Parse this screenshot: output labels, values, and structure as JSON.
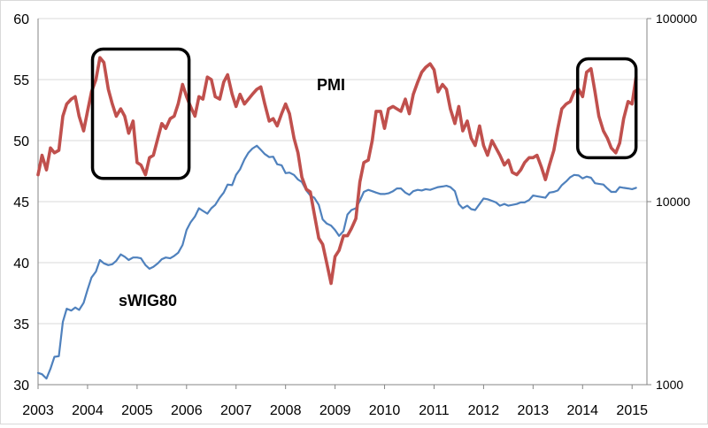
{
  "chart_data": {
    "type": "line",
    "title": "",
    "xlabel": "",
    "ylabel": "",
    "x_ticks": [
      "2003",
      "2004",
      "2005",
      "2006",
      "2007",
      "2008",
      "2009",
      "2010",
      "2011",
      "2012",
      "2013",
      "2014",
      "2015"
    ],
    "x_range": [
      2003,
      2015.3
    ],
    "y_left": {
      "range": [
        30,
        60
      ],
      "ticks": [
        "30",
        "35",
        "40",
        "45",
        "50",
        "55",
        "60"
      ]
    },
    "y_right": {
      "scale": "log",
      "range": [
        1000,
        100000
      ],
      "ticks": [
        "1000",
        "10000",
        "100000"
      ]
    },
    "grid": "horizontal",
    "legend": "none",
    "series": [
      {
        "name": "PMI",
        "axis": "left",
        "color": "#c0504d",
        "points": [
          [
            2003.0,
            47.2
          ],
          [
            2003.08,
            48.8
          ],
          [
            2003.17,
            47.6
          ],
          [
            2003.25,
            49.4
          ],
          [
            2003.33,
            49.0
          ],
          [
            2003.42,
            49.2
          ],
          [
            2003.5,
            52.0
          ],
          [
            2003.58,
            53.0
          ],
          [
            2003.67,
            53.4
          ],
          [
            2003.75,
            53.6
          ],
          [
            2003.83,
            52.0
          ],
          [
            2003.92,
            50.8
          ],
          [
            2004.0,
            52.4
          ],
          [
            2004.08,
            54.0
          ],
          [
            2004.17,
            55.0
          ],
          [
            2004.25,
            56.8
          ],
          [
            2004.33,
            56.4
          ],
          [
            2004.42,
            54.2
          ],
          [
            2004.5,
            53.0
          ],
          [
            2004.58,
            52.0
          ],
          [
            2004.67,
            52.6
          ],
          [
            2004.75,
            52.0
          ],
          [
            2004.83,
            50.6
          ],
          [
            2004.92,
            51.6
          ],
          [
            2005.0,
            48.2
          ],
          [
            2005.08,
            48.0
          ],
          [
            2005.17,
            47.2
          ],
          [
            2005.25,
            48.6
          ],
          [
            2005.33,
            48.8
          ],
          [
            2005.42,
            50.2
          ],
          [
            2005.5,
            51.4
          ],
          [
            2005.58,
            51.0
          ],
          [
            2005.67,
            51.8
          ],
          [
            2005.75,
            52.0
          ],
          [
            2005.83,
            53.0
          ],
          [
            2005.92,
            54.6
          ],
          [
            2006.0,
            53.6
          ],
          [
            2006.08,
            52.8
          ],
          [
            2006.17,
            52.0
          ],
          [
            2006.25,
            53.6
          ],
          [
            2006.33,
            53.4
          ],
          [
            2006.42,
            55.2
          ],
          [
            2006.5,
            55.0
          ],
          [
            2006.58,
            53.6
          ],
          [
            2006.67,
            53.4
          ],
          [
            2006.75,
            54.8
          ],
          [
            2006.83,
            55.4
          ],
          [
            2006.92,
            53.8
          ],
          [
            2007.0,
            52.8
          ],
          [
            2007.08,
            53.8
          ],
          [
            2007.17,
            53.0
          ],
          [
            2007.25,
            53.4
          ],
          [
            2007.33,
            53.8
          ],
          [
            2007.42,
            54.2
          ],
          [
            2007.5,
            54.4
          ],
          [
            2007.58,
            53.0
          ],
          [
            2007.67,
            51.6
          ],
          [
            2007.75,
            51.8
          ],
          [
            2007.83,
            51.2
          ],
          [
            2007.92,
            52.2
          ],
          [
            2008.0,
            53.0
          ],
          [
            2008.08,
            52.2
          ],
          [
            2008.17,
            50.2
          ],
          [
            2008.25,
            49.0
          ],
          [
            2008.33,
            47.0
          ],
          [
            2008.42,
            46.0
          ],
          [
            2008.5,
            45.8
          ],
          [
            2008.58,
            44.0
          ],
          [
            2008.67,
            42.0
          ],
          [
            2008.75,
            41.5
          ],
          [
            2008.83,
            40.0
          ],
          [
            2008.92,
            38.3
          ],
          [
            2009.0,
            40.5
          ],
          [
            2009.08,
            41.0
          ],
          [
            2009.17,
            42.2
          ],
          [
            2009.25,
            42.2
          ],
          [
            2009.33,
            42.8
          ],
          [
            2009.42,
            43.6
          ],
          [
            2009.5,
            46.6
          ],
          [
            2009.58,
            48.2
          ],
          [
            2009.67,
            48.4
          ],
          [
            2009.75,
            50.0
          ],
          [
            2009.83,
            52.4
          ],
          [
            2009.92,
            52.4
          ],
          [
            2010.0,
            51.0
          ],
          [
            2010.08,
            52.6
          ],
          [
            2010.17,
            52.8
          ],
          [
            2010.25,
            52.6
          ],
          [
            2010.33,
            52.4
          ],
          [
            2010.42,
            53.4
          ],
          [
            2010.5,
            52.2
          ],
          [
            2010.58,
            53.8
          ],
          [
            2010.67,
            54.8
          ],
          [
            2010.75,
            55.6
          ],
          [
            2010.83,
            56.0
          ],
          [
            2010.92,
            56.3
          ],
          [
            2011.0,
            55.8
          ],
          [
            2011.08,
            54.0
          ],
          [
            2011.17,
            54.6
          ],
          [
            2011.25,
            54.2
          ],
          [
            2011.33,
            52.6
          ],
          [
            2011.42,
            51.4
          ],
          [
            2011.5,
            52.8
          ],
          [
            2011.58,
            50.8
          ],
          [
            2011.67,
            51.6
          ],
          [
            2011.75,
            50.2
          ],
          [
            2011.83,
            49.6
          ],
          [
            2011.92,
            51.2
          ],
          [
            2012.0,
            49.6
          ],
          [
            2012.08,
            48.8
          ],
          [
            2012.17,
            50.0
          ],
          [
            2012.25,
            49.4
          ],
          [
            2012.33,
            48.8
          ],
          [
            2012.42,
            48.0
          ],
          [
            2012.5,
            48.4
          ],
          [
            2012.58,
            47.4
          ],
          [
            2012.67,
            47.2
          ],
          [
            2012.75,
            47.6
          ],
          [
            2012.83,
            48.2
          ],
          [
            2012.92,
            48.6
          ],
          [
            2013.0,
            48.6
          ],
          [
            2013.08,
            48.8
          ],
          [
            2013.17,
            47.8
          ],
          [
            2013.25,
            46.8
          ],
          [
            2013.33,
            48.0
          ],
          [
            2013.42,
            49.2
          ],
          [
            2013.5,
            51.0
          ],
          [
            2013.58,
            52.6
          ],
          [
            2013.67,
            53.0
          ],
          [
            2013.75,
            53.2
          ],
          [
            2013.83,
            54.0
          ],
          [
            2013.92,
            54.2
          ],
          [
            2014.0,
            53.6
          ],
          [
            2014.08,
            55.6
          ],
          [
            2014.17,
            55.9
          ],
          [
            2014.25,
            54.0
          ],
          [
            2014.33,
            52.0
          ],
          [
            2014.42,
            50.8
          ],
          [
            2014.5,
            50.2
          ],
          [
            2014.58,
            49.4
          ],
          [
            2014.67,
            49.0
          ],
          [
            2014.75,
            49.8
          ],
          [
            2014.83,
            51.8
          ],
          [
            2014.92,
            53.2
          ],
          [
            2015.0,
            53.0
          ],
          [
            2015.08,
            55.2
          ]
        ]
      },
      {
        "name": "sWIG80",
        "axis": "right",
        "color": "#4f81bd",
        "points": [
          [
            2003.0,
            1160
          ],
          [
            2003.08,
            1140
          ],
          [
            2003.17,
            1080
          ],
          [
            2003.25,
            1220
          ],
          [
            2003.33,
            1420
          ],
          [
            2003.42,
            1430
          ],
          [
            2003.5,
            2200
          ],
          [
            2003.58,
            2600
          ],
          [
            2003.67,
            2540
          ],
          [
            2003.75,
            2640
          ],
          [
            2003.83,
            2560
          ],
          [
            2003.92,
            2800
          ],
          [
            2004.0,
            3300
          ],
          [
            2004.08,
            3850
          ],
          [
            2004.17,
            4150
          ],
          [
            2004.25,
            4800
          ],
          [
            2004.33,
            4600
          ],
          [
            2004.42,
            4500
          ],
          [
            2004.5,
            4550
          ],
          [
            2004.58,
            4750
          ],
          [
            2004.67,
            5150
          ],
          [
            2004.75,
            5000
          ],
          [
            2004.83,
            4800
          ],
          [
            2004.92,
            4950
          ],
          [
            2005.0,
            4950
          ],
          [
            2005.08,
            4900
          ],
          [
            2005.17,
            4500
          ],
          [
            2005.25,
            4300
          ],
          [
            2005.33,
            4400
          ],
          [
            2005.42,
            4600
          ],
          [
            2005.5,
            4850
          ],
          [
            2005.58,
            4950
          ],
          [
            2005.67,
            4900
          ],
          [
            2005.75,
            5050
          ],
          [
            2005.83,
            5250
          ],
          [
            2005.92,
            5800
          ],
          [
            2006.0,
            7000
          ],
          [
            2006.08,
            7700
          ],
          [
            2006.17,
            8300
          ],
          [
            2006.25,
            9200
          ],
          [
            2006.33,
            8900
          ],
          [
            2006.42,
            8600
          ],
          [
            2006.5,
            9200
          ],
          [
            2006.58,
            9600
          ],
          [
            2006.67,
            10500
          ],
          [
            2006.75,
            11200
          ],
          [
            2006.83,
            12400
          ],
          [
            2006.92,
            12300
          ],
          [
            2007.0,
            14000
          ],
          [
            2007.08,
            15000
          ],
          [
            2007.17,
            17000
          ],
          [
            2007.25,
            18500
          ],
          [
            2007.33,
            19500
          ],
          [
            2007.42,
            20200
          ],
          [
            2007.5,
            19200
          ],
          [
            2007.58,
            18200
          ],
          [
            2007.67,
            17500
          ],
          [
            2007.75,
            17600
          ],
          [
            2007.83,
            16000
          ],
          [
            2007.92,
            15800
          ],
          [
            2008.0,
            14300
          ],
          [
            2008.08,
            14400
          ],
          [
            2008.17,
            14000
          ],
          [
            2008.25,
            13200
          ],
          [
            2008.33,
            12800
          ],
          [
            2008.42,
            11500
          ],
          [
            2008.5,
            10800
          ],
          [
            2008.58,
            10500
          ],
          [
            2008.67,
            9600
          ],
          [
            2008.75,
            8000
          ],
          [
            2008.83,
            7600
          ],
          [
            2008.92,
            7400
          ],
          [
            2009.0,
            7000
          ],
          [
            2009.08,
            6500
          ],
          [
            2009.17,
            6900
          ],
          [
            2009.25,
            8500
          ],
          [
            2009.33,
            9000
          ],
          [
            2009.42,
            9200
          ],
          [
            2009.5,
            10100
          ],
          [
            2009.58,
            11300
          ],
          [
            2009.67,
            11600
          ],
          [
            2009.75,
            11400
          ],
          [
            2009.83,
            11200
          ],
          [
            2009.92,
            11000
          ],
          [
            2010.0,
            11000
          ],
          [
            2010.08,
            11100
          ],
          [
            2010.17,
            11400
          ],
          [
            2010.25,
            11800
          ],
          [
            2010.33,
            11800
          ],
          [
            2010.42,
            11200
          ],
          [
            2010.5,
            10900
          ],
          [
            2010.58,
            11400
          ],
          [
            2010.67,
            11600
          ],
          [
            2010.75,
            11500
          ],
          [
            2010.83,
            11700
          ],
          [
            2010.92,
            11600
          ],
          [
            2011.0,
            11800
          ],
          [
            2011.08,
            12000
          ],
          [
            2011.17,
            12100
          ],
          [
            2011.25,
            12200
          ],
          [
            2011.33,
            12000
          ],
          [
            2011.42,
            11400
          ],
          [
            2011.5,
            9700
          ],
          [
            2011.58,
            9200
          ],
          [
            2011.67,
            9500
          ],
          [
            2011.75,
            9100
          ],
          [
            2011.83,
            9000
          ],
          [
            2011.92,
            9700
          ],
          [
            2012.0,
            10400
          ],
          [
            2012.08,
            10300
          ],
          [
            2012.17,
            10100
          ],
          [
            2012.25,
            9900
          ],
          [
            2012.33,
            9500
          ],
          [
            2012.42,
            9700
          ],
          [
            2012.5,
            9500
          ],
          [
            2012.58,
            9600
          ],
          [
            2012.67,
            9700
          ],
          [
            2012.75,
            9900
          ],
          [
            2012.83,
            9900
          ],
          [
            2012.92,
            10200
          ],
          [
            2013.0,
            10800
          ],
          [
            2013.08,
            10700
          ],
          [
            2013.17,
            10600
          ],
          [
            2013.25,
            10500
          ],
          [
            2013.33,
            11200
          ],
          [
            2013.42,
            11300
          ],
          [
            2013.5,
            11500
          ],
          [
            2013.58,
            12300
          ],
          [
            2013.67,
            12900
          ],
          [
            2013.75,
            13600
          ],
          [
            2013.83,
            14000
          ],
          [
            2013.92,
            13900
          ],
          [
            2014.0,
            13400
          ],
          [
            2014.08,
            13700
          ],
          [
            2014.17,
            13500
          ],
          [
            2014.25,
            12600
          ],
          [
            2014.33,
            12500
          ],
          [
            2014.42,
            12400
          ],
          [
            2014.5,
            11800
          ],
          [
            2014.58,
            11300
          ],
          [
            2014.67,
            11300
          ],
          [
            2014.75,
            12000
          ],
          [
            2014.83,
            11900
          ],
          [
            2014.92,
            11800
          ],
          [
            2015.0,
            11700
          ],
          [
            2015.08,
            11900
          ]
        ]
      }
    ],
    "annotations": [
      {
        "type": "box",
        "x": [
          2004.1,
          2006.05
        ],
        "y": [
          46.9,
          57.5
        ]
      },
      {
        "type": "box",
        "x": [
          2013.9,
          2015.08
        ],
        "y": [
          48.6,
          56.7
        ]
      }
    ]
  }
}
